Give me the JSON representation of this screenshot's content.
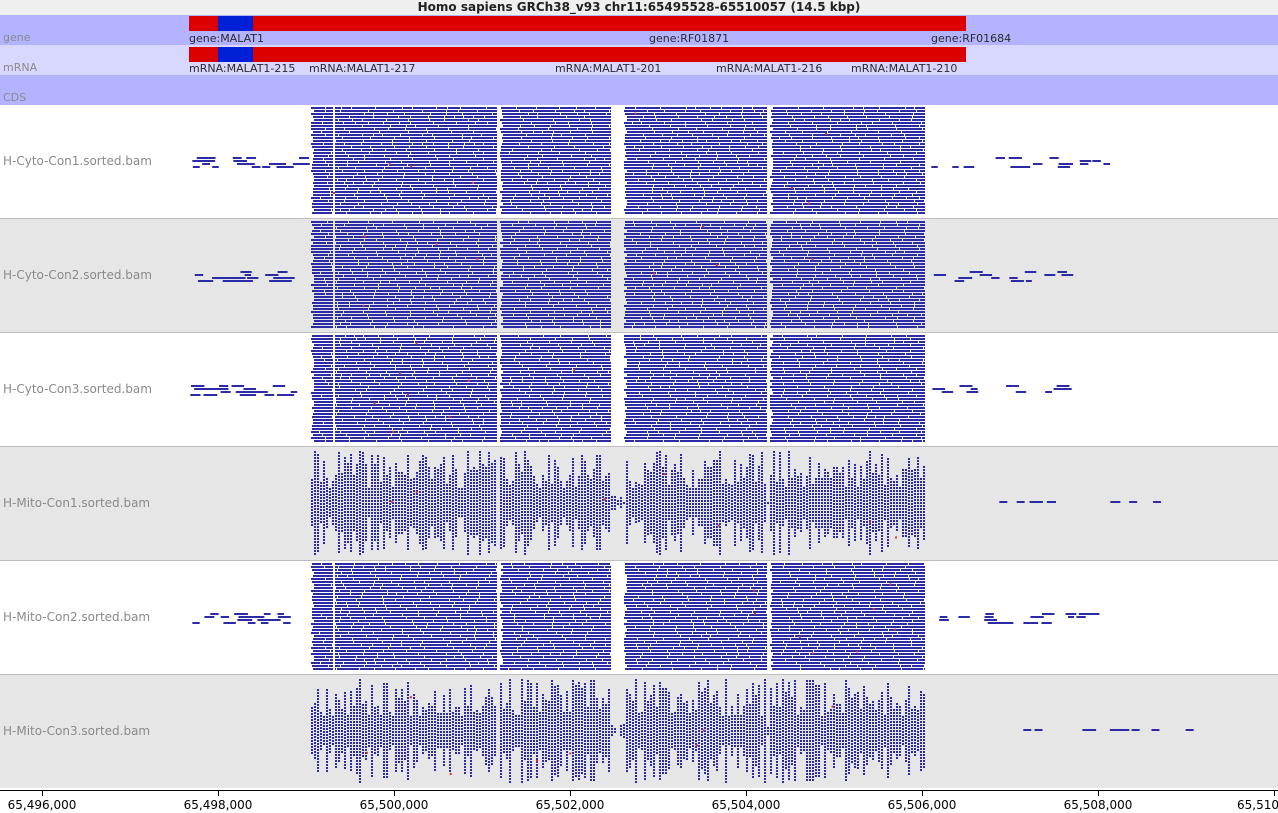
{
  "title": "Homo sapiens GRCh38_v93 chr11:65495528-65510057 (14.5 kbp)",
  "colors": {
    "gene_track_bg": "#b3b3ff",
    "mrna_track_bg": "#d8d8ff",
    "cds_track_bg": "#b3b3ff",
    "feature": "#dd0000",
    "utr": "#0020d8",
    "read": "#2b2ba8",
    "mismatch": "#e03030",
    "alt_bg": "#e6e6e6"
  },
  "tracks": {
    "gene": {
      "label": "gene",
      "features": [
        "gene:MALAT1",
        "gene:RF01871",
        "gene:RF01684"
      ]
    },
    "mrna": {
      "label": "mRNA",
      "features": [
        "mRNA:MALAT1-215",
        "mRNA:MALAT1-217",
        "mRNA:MALAT1-201",
        "mRNA:MALAT1-216",
        "mRNA:MALAT1-210"
      ]
    },
    "cds": {
      "label": "CDS"
    }
  },
  "bam_tracks": [
    {
      "name": "H-Cyto-Con1.sorted.bam",
      "density": "full",
      "seed": 11
    },
    {
      "name": "H-Cyto-Con2.sorted.bam",
      "density": "full",
      "seed": 23
    },
    {
      "name": "H-Cyto-Con3.sorted.bam",
      "density": "full",
      "seed": 37
    },
    {
      "name": "H-Mito-Con1.sorted.bam",
      "density": "sparse",
      "seed": 41
    },
    {
      "name": "H-Mito-Con2.sorted.bam",
      "density": "full",
      "seed": 53
    },
    {
      "name": "H-Mito-Con3.sorted.bam",
      "density": "sparse",
      "seed": 67
    }
  ],
  "axis": {
    "start": 65495528,
    "end": 65510057,
    "ticks": [
      "65,496,000",
      "65,498,000",
      "65,500,000",
      "65,502,000",
      "65,504,000",
      "65,506,000",
      "65,508,000",
      "65,510,000"
    ]
  }
}
